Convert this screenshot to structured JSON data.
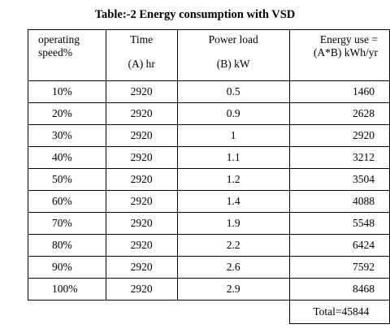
{
  "title": "Table:-2 Energy consumption with VSD",
  "headers": {
    "speed_line1": "operating",
    "speed_line2": "speed%",
    "time_line1": "Time",
    "time_line2": "(A) hr",
    "power_line1": "Power load",
    "power_line2": "(B) kW",
    "energy_line1": "Energy use =",
    "energy_line2": "(A*B) kWh/yr"
  },
  "rows": [
    {
      "speed": "10%",
      "time": "2920",
      "power": "0.5",
      "energy": "1460"
    },
    {
      "speed": "20%",
      "time": "2920",
      "power": "0.9",
      "energy": "2628"
    },
    {
      "speed": "30%",
      "time": "2920",
      "power": "1",
      "energy": "2920"
    },
    {
      "speed": "40%",
      "time": "2920",
      "power": "1.1",
      "energy": "3212"
    },
    {
      "speed": "50%",
      "time": "2920",
      "power": "1.2",
      "energy": "3504"
    },
    {
      "speed": "60%",
      "time": "2920",
      "power": "1.4",
      "energy": "4088"
    },
    {
      "speed": "70%",
      "time": "2920",
      "power": "1.9",
      "energy": "5548"
    },
    {
      "speed": "80%",
      "time": "2920",
      "power": "2.2",
      "energy": "6424"
    },
    {
      "speed": "90%",
      "time": "2920",
      "power": "2.6",
      "energy": "7592"
    },
    {
      "speed": "100%",
      "time": "2920",
      "power": "2.9",
      "energy": "8468"
    }
  ],
  "total": "Total=45844"
}
